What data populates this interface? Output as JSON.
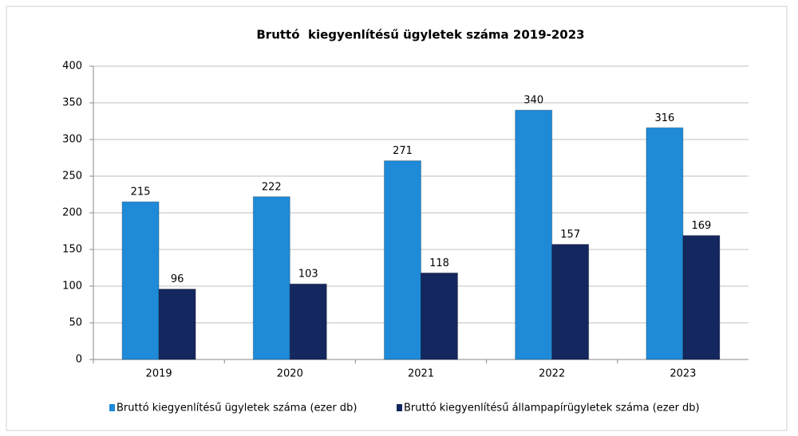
{
  "chart_data": {
    "type": "bar",
    "title": "Bruttó  kiegyenlítésű ügyletek száma 2019-2023",
    "categories": [
      "2019",
      "2020",
      "2021",
      "2022",
      "2023"
    ],
    "series": [
      {
        "name": "Bruttó kiegyenlítésű ügyletek száma (ezer db)",
        "color": "#1e8ad8",
        "values": [
          215,
          222,
          271,
          340,
          316
        ]
      },
      {
        "name": "Bruttó kiegyenlítésű állampapírügyletek száma (ezer db)",
        "color": "#14275e",
        "values": [
          96,
          103,
          118,
          157,
          169
        ]
      }
    ],
    "ylim": [
      0,
      400
    ],
    "yticks": [
      0,
      50,
      100,
      150,
      200,
      250,
      300,
      350,
      400
    ],
    "grid": true,
    "legend": "bottom"
  }
}
